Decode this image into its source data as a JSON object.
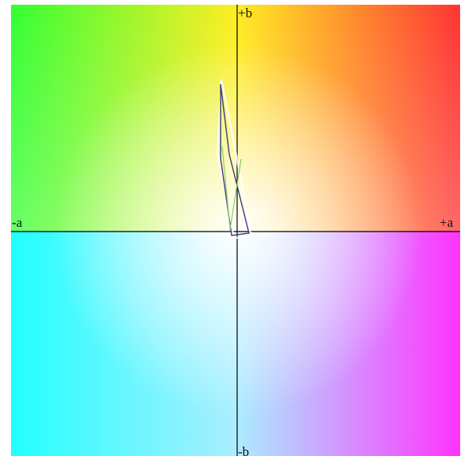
{
  "axes": {
    "pos_a_label": "+a",
    "neg_a_label": "-a",
    "pos_b_label": "+b",
    "neg_b_label": "-b"
  },
  "colors": {
    "top_left": "#33ff33",
    "top_mid": "#ffee22",
    "top_right": "#ff3333",
    "left": "#33ffaa",
    "right": "#ff33ff",
    "bottom_left": "#22ffff",
    "bottom_mid": "#aaeeff",
    "bottom_right": "#ff33ff",
    "center": "#ffffff",
    "axis_line": "#000000",
    "outline_main": "#3a3a7a",
    "outline_inner": "#88cc66",
    "outline_faint": "#ffffff"
  },
  "shapes": [
    {
      "name": "gamut-outline-main",
      "color": "outline_main"
    },
    {
      "name": "gamut-outline-inner",
      "color": "outline_inner"
    },
    {
      "name": "gamut-outline-faint",
      "color": "outline_faint"
    }
  ]
}
